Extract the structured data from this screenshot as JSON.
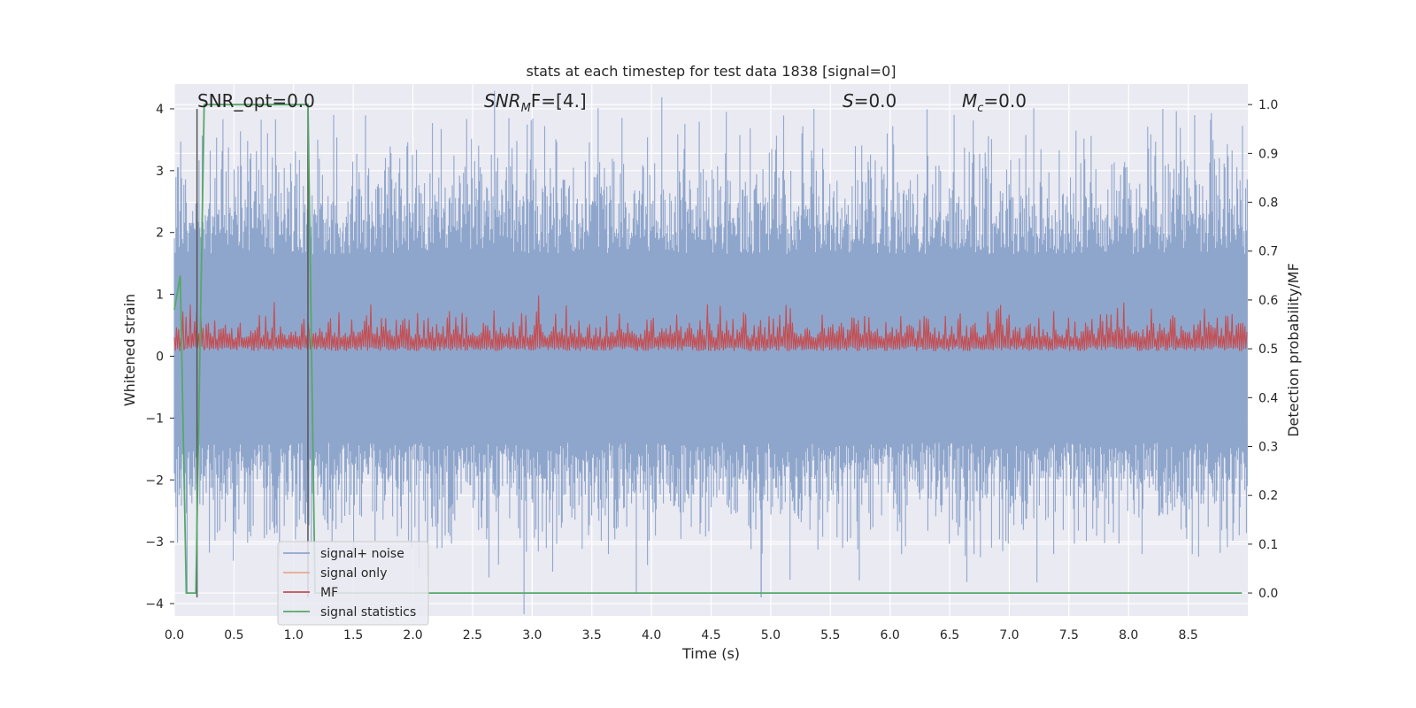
{
  "chart_data": {
    "type": "line",
    "title": "stats at each timestep for test data 1838 [signal=0]",
    "xlabel": "Time (s)",
    "ylabel_left": "Whitened strain",
    "ylabel_right": "Detection probability/MF",
    "xlim": [
      0.0,
      9.0
    ],
    "ylim_left": [
      -4.2,
      4.4
    ],
    "ylim_right": [
      -0.047,
      1.042
    ],
    "x_ticks": [
      "0.0",
      "0.5",
      "1.0",
      "1.5",
      "2.0",
      "2.5",
      "3.0",
      "3.5",
      "4.0",
      "4.5",
      "5.0",
      "5.5",
      "6.0",
      "6.5",
      "7.0",
      "7.5",
      "8.0",
      "8.5"
    ],
    "y_ticks_left": [
      "−4",
      "−3",
      "−2",
      "−1",
      "0",
      "1",
      "2",
      "3",
      "4"
    ],
    "y_ticks_right": [
      "0.0",
      "0.1",
      "0.2",
      "0.3",
      "0.4",
      "0.5",
      "0.6",
      "0.7",
      "0.8",
      "0.9",
      "1.0"
    ],
    "grid": true,
    "annotations": {
      "snr_opt": "SNR_opt=0.0",
      "snr_mf_base": "SNR",
      "snr_mf_sub": "M",
      "snr_mf_rest": "F=[4.]",
      "s_label_var": "S",
      "s_label_rest": "=0.0",
      "mc_var": "M",
      "mc_sub": "c",
      "mc_rest": "=0.0"
    },
    "vertical_lines_x": [
      0.19,
      1.12
    ],
    "series": [
      {
        "name": "signal+ noise",
        "color": "#8fa6cc",
        "axis": "left",
        "description_values": {
          "x_range": [
            0.0,
            9.0
          ],
          "approx_range": [
            -3.9,
            4.0
          ]
        }
      },
      {
        "name": "signal only",
        "color": "#e8a98a",
        "axis": "left",
        "values": []
      },
      {
        "name": "MF",
        "color": "#c44e52",
        "axis": "right",
        "description_values": {
          "x_range": [
            0.0,
            9.0
          ],
          "approx_range": [
            0.49,
            0.61
          ]
        }
      },
      {
        "name": "signal statistics",
        "color": "#55a868",
        "axis": "right",
        "x": [
          0.0,
          0.05,
          0.1,
          0.12,
          0.18,
          0.25,
          0.5,
          1.0,
          1.12,
          1.18,
          1.5,
          2.0,
          3.0,
          4.0,
          5.0,
          6.0,
          7.0,
          8.0,
          8.95
        ],
        "y": [
          0.58,
          0.65,
          0.0,
          0.0,
          0.0,
          1.0,
          1.0,
          1.0,
          1.0,
          0.0,
          0.0,
          0.0,
          0.0,
          0.0,
          0.0,
          0.0,
          0.0,
          0.0,
          0.0
        ]
      }
    ],
    "legend_placement": "bottom-left"
  }
}
